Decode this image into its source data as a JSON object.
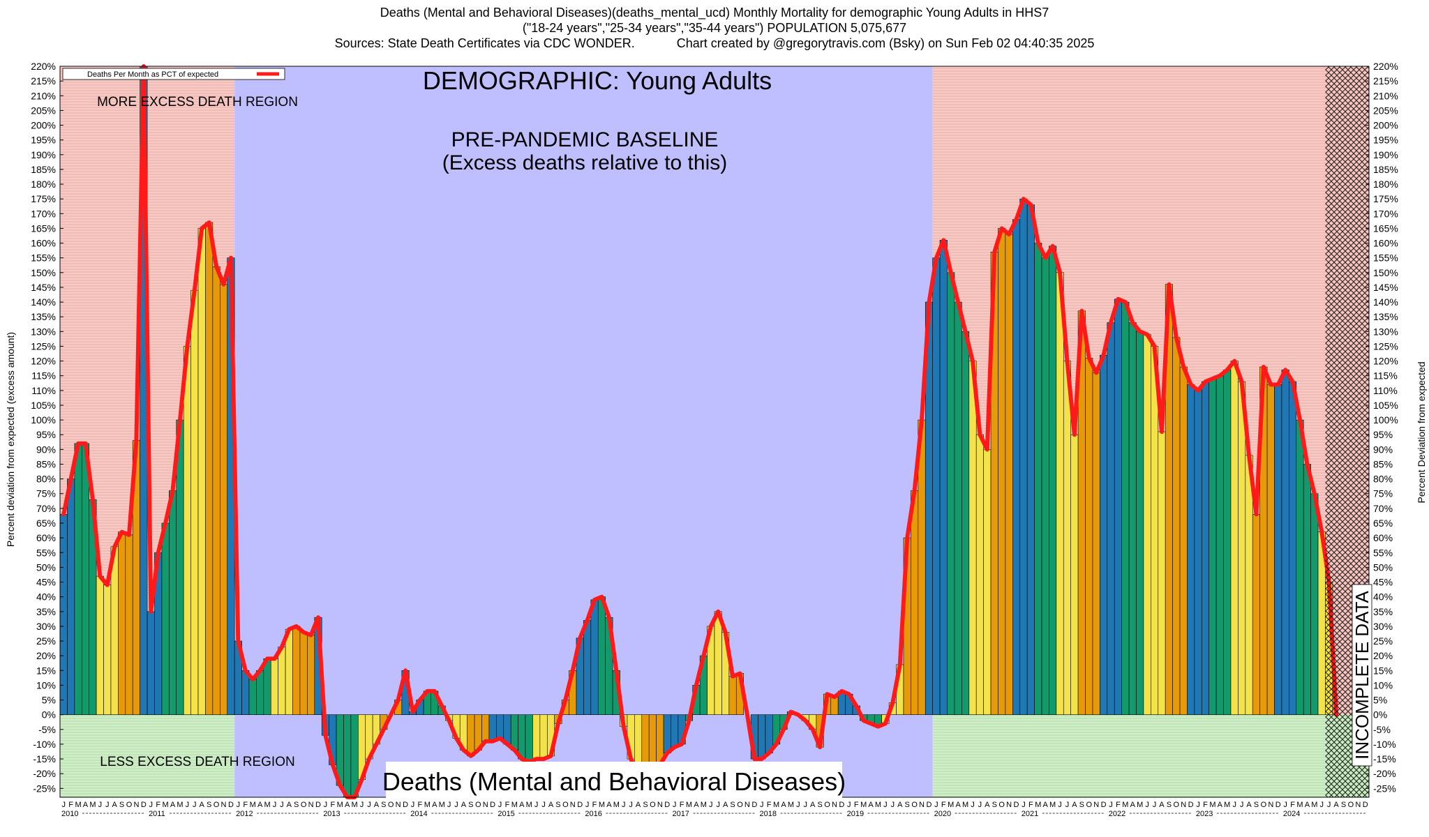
{
  "header": {
    "line1": "Deaths (Mental and Behavioral Diseases)(deaths_mental_ucd) Monthly Mortality for demographic Young Adults in HHS7",
    "line2": "(\"18-24 years\",\"25-34 years\",\"35-44 years\") POPULATION 5,075,677",
    "line3": "Sources: State Death Certificates via CDC WONDER.            Chart created by @gregorytravis.com (Bsky) on Sun Feb 02 04:40:35 2025"
  },
  "chart_data": {
    "type": "bar",
    "title": "DEMOGRAPHIC: Young Adults",
    "ylabel": "Percent deviation from expected (excess amount)",
    "ylabel_right": "Percent Deviation from expected",
    "ylim": [
      -28,
      220
    ],
    "y_tick_step": 5,
    "legend": "Deaths Per Month as PCT of expected",
    "legend_position": "top-left",
    "bottom_label": "Deaths (Mental and Behavioral Diseases)",
    "annotations": {
      "more_region": "MORE EXCESS DEATH REGION",
      "less_region": "LESS EXCESS DEATH REGION",
      "baseline_1": "PRE-PANDEMIC BASELINE",
      "baseline_2": "(Excess deaths relative to this)",
      "incomplete": "INCOMPLETE DATA"
    },
    "years": [
      "2010",
      "2011",
      "2012",
      "2013",
      "2014",
      "2015",
      "2016",
      "2017",
      "2018",
      "2019",
      "2020",
      "2021",
      "2022",
      "2023",
      "2024"
    ],
    "month_letters": [
      "J",
      "F",
      "M",
      "A",
      "M",
      "J",
      "J",
      "A",
      "S",
      "O",
      "N",
      "D"
    ],
    "baseline_years": [
      "2012",
      "2013",
      "2014",
      "2015",
      "2016",
      "2017",
      "2018",
      "2019"
    ],
    "incomplete_from": "2024-07",
    "season_colors": {
      "winter": "#1f77b4",
      "spring": "#129a6c",
      "summer": "#f4e24a",
      "fall": "#e69a0a"
    },
    "line_color": "#ff1a1a",
    "region_colors": {
      "more": "#f5c5c0",
      "less": "#c8edc0",
      "baseline": "#bfbfff"
    },
    "values": [
      68,
      80,
      92,
      92,
      73,
      47,
      44,
      57,
      62,
      61,
      93,
      222,
      35,
      55,
      65,
      76,
      100,
      125,
      144,
      165,
      167,
      152,
      146,
      155,
      25,
      15,
      12,
      15,
      19,
      19,
      23,
      29,
      30,
      28,
      27,
      33,
      -7,
      -17,
      -24,
      -28,
      -28,
      -22,
      -15,
      -10,
      -5,
      0,
      5,
      15,
      1,
      5,
      8,
      8,
      3,
      -2,
      -8,
      -12,
      -14,
      -12,
      -9,
      -9,
      -8,
      -10,
      -12,
      -15,
      -16,
      -15,
      -15,
      -14,
      -3,
      5,
      15,
      26,
      32,
      39,
      40,
      33,
      15,
      -4,
      -15,
      -20,
      -21,
      -20,
      -17,
      -13,
      -11,
      -10,
      -2,
      10,
      20,
      30,
      35,
      28,
      13,
      14,
      0,
      -15,
      -15,
      -13,
      -10,
      -5,
      1,
      0,
      -2,
      -5,
      -11,
      7,
      6,
      8,
      7,
      3,
      -2,
      -3,
      -4,
      -3,
      4,
      17,
      60,
      76,
      100,
      140,
      155,
      161,
      150,
      140,
      130,
      120,
      95,
      90,
      157,
      165,
      163,
      168,
      175,
      173,
      160,
      155,
      159,
      150,
      120,
      95,
      137,
      121,
      116,
      122,
      133,
      141,
      140,
      133,
      130,
      129,
      125,
      96,
      146,
      128,
      118,
      112,
      110,
      113,
      114,
      115,
      117,
      120,
      113,
      88,
      68,
      118,
      112,
      112,
      117,
      113,
      100,
      85,
      75,
      62,
      45,
      0,
      0,
      0,
      0,
      0
    ]
  }
}
